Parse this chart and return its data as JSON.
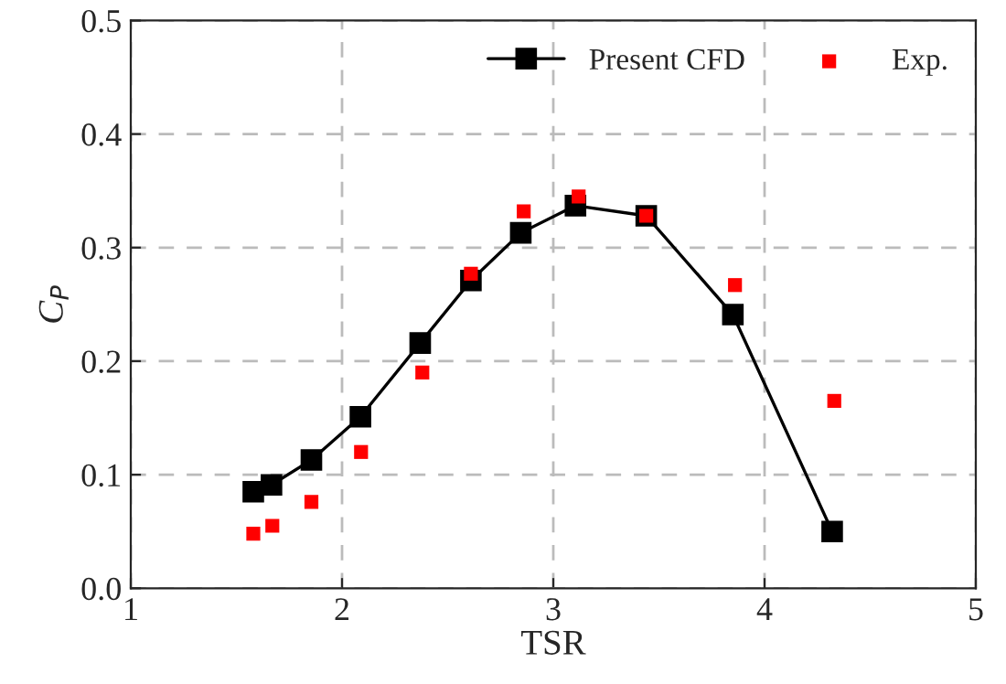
{
  "chart_data": {
    "type": "line",
    "xlabel": "TSR",
    "ylabel": "C$_{P}$",
    "xlim": [
      1,
      5
    ],
    "xticks": [
      1,
      2,
      3,
      4,
      5
    ],
    "ylim": [
      0,
      0.5
    ],
    "yticks": [
      {
        "value": 0,
        "label": "0.0"
      },
      0.1,
      0.2,
      0.3,
      0.4,
      0.5
    ],
    "grid": true,
    "legend": "top right",
    "marker": "square",
    "series": [
      {
        "name": "Present CFD",
        "color": "#000000",
        "x": [
          1.58,
          1.666,
          1.855,
          2.087,
          2.37,
          2.61,
          2.846,
          3.105,
          3.44,
          3.85,
          4.32
        ],
        "values": [
          0.085,
          0.091,
          0.113,
          0.151,
          0.216,
          0.271,
          0.313,
          0.337,
          0.328,
          0.241,
          0.05
        ]
      },
      {
        "name": "Exp.",
        "type": "scatter",
        "color": "#ff0000",
        "x": [
          1.58,
          1.67,
          1.855,
          2.09,
          2.38,
          2.61,
          2.86,
          3.12,
          3.44,
          3.86,
          4.33
        ],
        "values": [
          0.048,
          0.055,
          0.076,
          0.12,
          0.19,
          0.277,
          0.332,
          0.345,
          0.328,
          0.267,
          0.165
        ]
      }
    ]
  }
}
